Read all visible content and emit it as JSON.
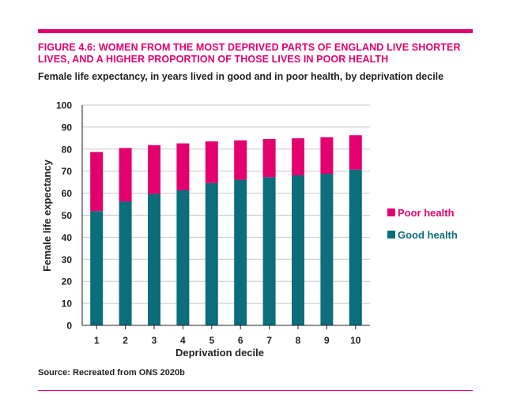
{
  "figure": {
    "title": "FIGURE 4.6: WOMEN FROM THE MOST DEPRIVED PARTS OF ENGLAND LIVE SHORTER LIVES, AND A HIGHER PROPORTION OF THOSE LIVES IN POOR HEALTH",
    "subtitle": "Female life expectancy, in years lived in good and in poor health, by deprivation decile",
    "source": "Source: Recreated from ONS 2020b"
  },
  "chart_data": {
    "type": "bar",
    "stacked": true,
    "categories": [
      "1",
      "2",
      "3",
      "4",
      "5",
      "6",
      "7",
      "8",
      "9",
      "10"
    ],
    "series": [
      {
        "name": "Good health",
        "color": "#0b6e7a",
        "values": [
          51.9,
          56.3,
          59.7,
          61.3,
          64.6,
          66.1,
          67.3,
          68.1,
          68.8,
          70.7
        ]
      },
      {
        "name": "Poor health",
        "color": "#e3006e",
        "values": [
          26.8,
          24.2,
          22.1,
          21.3,
          18.9,
          17.9,
          17.3,
          16.8,
          16.6,
          15.6
        ]
      }
    ],
    "xlabel": "Deprivation decile",
    "ylabel": "Female life expectancy",
    "ylim": [
      0,
      100
    ],
    "yticks": [
      0,
      10,
      20,
      30,
      40,
      50,
      60,
      70,
      80,
      90,
      100
    ],
    "grid": true,
    "legend": {
      "placement": "right",
      "order": [
        "Poor health",
        "Good health"
      ]
    }
  }
}
